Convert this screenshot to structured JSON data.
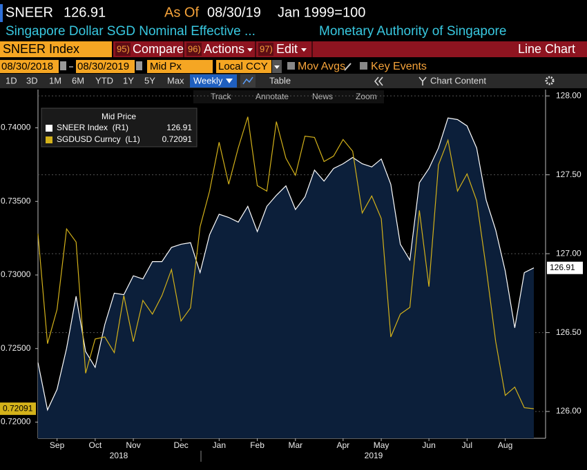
{
  "header": {
    "ticker": "SNEER",
    "price": "126.91",
    "as_of_label": "As Of",
    "as_of": "08/30/19",
    "base": "Jan 1999=100",
    "description": "Singapore Dollar SGD Nominal Effective ...",
    "source": "Monetary Authority of Singapore"
  },
  "toolbar": {
    "security": "SNEER Index",
    "menus": [
      {
        "num": "95)",
        "label": "Compare"
      },
      {
        "num": "96)",
        "label": "Actions"
      },
      {
        "num": "97)",
        "label": "Edit"
      }
    ],
    "view": "Line Chart"
  },
  "settings": {
    "start": "08/30/2018",
    "end": "08/30/2019",
    "field": "Mid Px",
    "currency": "Local CCY",
    "options": [
      "Mov Avgs",
      "Key Events"
    ]
  },
  "periods": [
    "1D",
    "3D",
    "1M",
    "6M",
    "YTD",
    "1Y",
    "5Y",
    "Max"
  ],
  "frequency": "Weekly",
  "table": "Table",
  "chart_content": "Chart Content",
  "chart_tools": [
    "Track",
    "Annotate",
    "News",
    "Zoom"
  ],
  "chart_data": {
    "type": "line",
    "legend_title": "Mid Price",
    "grid": true,
    "categories": [
      null,
      null,
      "Sep",
      null,
      null,
      null,
      "Oct",
      null,
      null,
      null,
      "Nov",
      null,
      null,
      null,
      null,
      "Dec",
      null,
      null,
      null,
      "Jan",
      null,
      null,
      null,
      "Feb",
      null,
      null,
      null,
      "Mar",
      null,
      null,
      null,
      null,
      "Apr",
      null,
      null,
      null,
      "May",
      null,
      null,
      null,
      null,
      "Jun",
      null,
      null,
      null,
      "Jul",
      null,
      null,
      null,
      "Aug",
      null,
      null,
      null
    ],
    "x_groups": [
      "2018",
      "2019"
    ],
    "ylim": [
      0.7189,
      0.7426
    ],
    "yticks": [
      {
        "value": 0.72,
        "label": "0.72000"
      },
      {
        "value": 0.725,
        "label": "0.72500"
      },
      {
        "value": 0.73,
        "label": "0.73000"
      },
      {
        "value": 0.735,
        "label": "0.73500"
      },
      {
        "value": 0.74,
        "label": "0.74000"
      }
    ],
    "y2lim": [
      125.83,
      128.04
    ],
    "y2ticks": [
      {
        "value": 126,
        "label": "126.00"
      },
      {
        "value": 126.5,
        "label": "126.50"
      },
      {
        "value": 127,
        "label": "127.00"
      },
      {
        "value": 127.5,
        "label": "127.50"
      },
      {
        "value": 128,
        "label": "128.00"
      }
    ],
    "series": [
      {
        "name": "SNEER Index  (R1)",
        "color": "#ffffff",
        "fill": "#0c1f3a",
        "axis": "y2",
        "values": [
          126.31,
          126.01,
          126.14,
          126.4,
          126.73,
          126.38,
          126.28,
          126.55,
          126.75,
          126.74,
          126.86,
          126.84,
          126.95,
          126.95,
          127.04,
          127.06,
          127.07,
          126.88,
          127.12,
          127.25,
          127.23,
          127.2,
          127.3,
          127.14,
          127.3,
          127.37,
          127.43,
          127.28,
          127.36,
          127.53,
          127.46,
          127.54,
          127.57,
          127.61,
          127.57,
          127.55,
          127.6,
          127.44,
          127.06,
          126.96,
          127.45,
          127.54,
          127.67,
          127.86,
          127.85,
          127.81,
          127.67,
          127.34,
          127.15,
          126.89,
          126.53,
          126.88,
          126.91
        ],
        "value_labels": [
          null,
          null,
          null,
          null,
          null,
          null,
          null,
          null,
          null,
          null,
          null,
          null,
          null,
          null,
          null,
          null,
          null,
          null,
          null,
          null,
          null,
          null,
          null,
          null,
          null,
          null,
          null,
          null,
          null,
          null,
          null,
          null,
          null,
          null,
          null,
          null,
          null,
          null,
          null,
          null,
          null,
          null,
          null,
          null,
          null,
          null,
          null,
          null,
          null,
          null,
          null,
          null,
          "126.91"
        ]
      },
      {
        "name": "SGDUSD Curncy  (L1)",
        "color": "#d4b21a",
        "axis": "y",
        "values": [
          0.7328,
          0.72533,
          0.72766,
          0.73313,
          0.73224,
          0.72332,
          0.72565,
          0.72579,
          0.72472,
          0.7286,
          0.72547,
          0.72827,
          0.72734,
          0.7286,
          0.73037,
          0.72687,
          0.72776,
          0.73327,
          0.7357,
          0.73902,
          0.73617,
          0.73864,
          0.74075,
          0.73607,
          0.7357,
          0.74042,
          0.73794,
          0.73678,
          0.73944,
          0.73935,
          0.73771,
          0.73808,
          0.73921,
          0.73841,
          0.73421,
          0.73537,
          0.73383,
          0.72579,
          0.72734,
          0.7278,
          0.73439,
          0.72921,
          0.73748,
          0.73916,
          0.7357,
          0.73687,
          0.73505,
          0.73047,
          0.72547,
          0.72182,
          0.72238,
          0.72098,
          0.72091
        ],
        "value_labels": [
          null,
          null,
          null,
          null,
          null,
          null,
          null,
          null,
          null,
          null,
          null,
          null,
          null,
          null,
          null,
          null,
          null,
          null,
          null,
          null,
          null,
          null,
          null,
          null,
          null,
          null,
          null,
          null,
          null,
          null,
          null,
          null,
          null,
          null,
          null,
          null,
          null,
          null,
          null,
          null,
          null,
          null,
          null,
          null,
          null,
          null,
          null,
          null,
          null,
          null,
          null,
          null,
          "0.72091"
        ]
      }
    ]
  }
}
